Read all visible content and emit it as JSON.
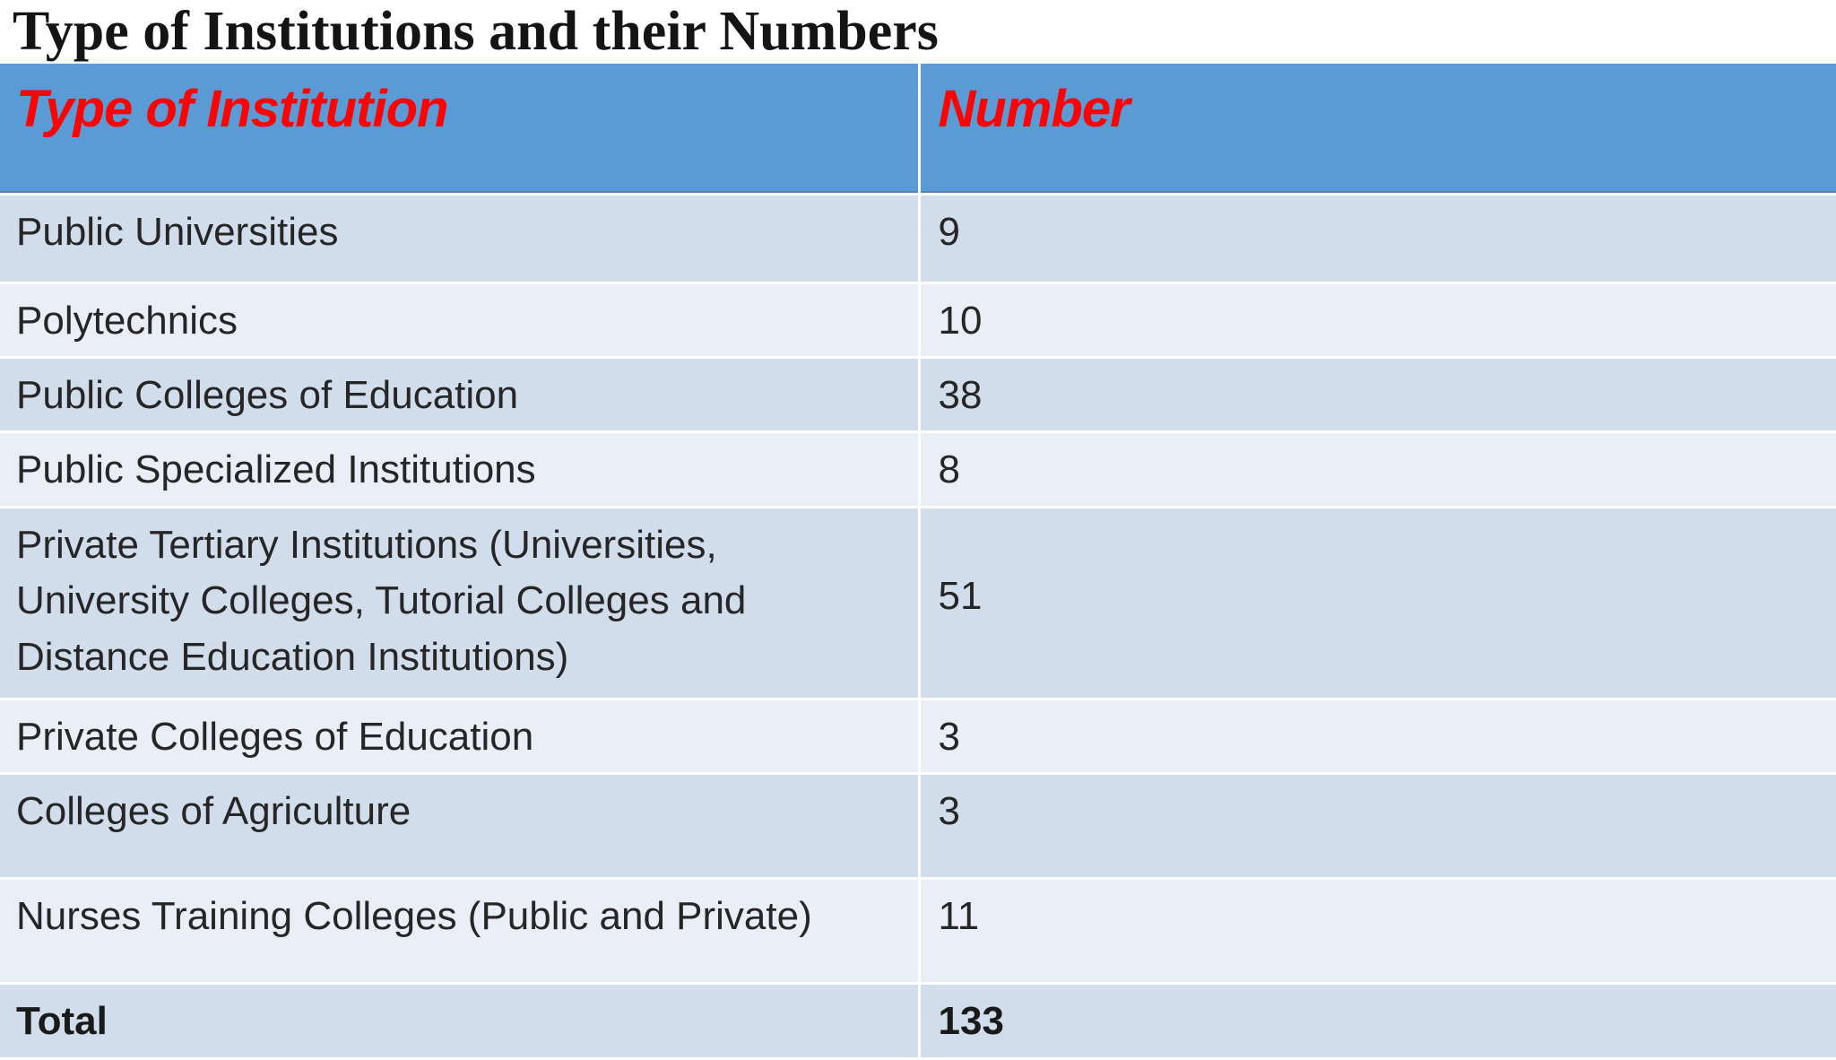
{
  "page": {
    "title": "Type of Institutions and their Numbers"
  },
  "table": {
    "columns": [
      {
        "label": "Type of Institution"
      },
      {
        "label": "Number"
      }
    ],
    "rows": [
      {
        "type": "Public Universities",
        "number": "9"
      },
      {
        "type": "Polytechnics",
        "number": "10"
      },
      {
        "type": "Public Colleges of Education",
        "number": "38"
      },
      {
        "type": "Public Specialized Institutions",
        "number": "8"
      },
      {
        "type": "Private Tertiary Institutions (Universities, University Colleges, Tutorial Colleges and Distance Education Institutions)",
        "number": "51"
      },
      {
        "type": "Private Colleges of Education",
        "number": "3"
      },
      {
        "type": "Colleges of Agriculture",
        "number": "3"
      },
      {
        "type": "Nurses Training Colleges (Public and Private)",
        "number": "11"
      }
    ],
    "total": {
      "label": "Total",
      "number": "133"
    }
  },
  "colors": {
    "header_background": "#5B9BD5",
    "header_underline": "#4C86C2",
    "header_text_red": "#FA0505",
    "band_dark": "#D2DDEC",
    "band_light": "#EAEFF7",
    "gridline": "#FFFFFF",
    "body_text": "#262626",
    "title_text": "#141414"
  },
  "chart_data": {
    "type": "table",
    "title": "Type of Institutions and their Numbers",
    "columns": [
      "Type of Institution",
      "Number"
    ],
    "rows": [
      [
        "Public Universities",
        9
      ],
      [
        "Polytechnics",
        10
      ],
      [
        "Public Colleges of Education",
        38
      ],
      [
        "Public Specialized Institutions",
        8
      ],
      [
        "Private Tertiary Institutions (Universities, University Colleges, Tutorial Colleges and Distance Education Institutions)",
        51
      ],
      [
        "Private Colleges of Education",
        3
      ],
      [
        "Colleges of Agriculture",
        3
      ],
      [
        "Nurses Training Colleges (Public and Private)",
        11
      ]
    ],
    "total": [
      "Total",
      133
    ]
  }
}
